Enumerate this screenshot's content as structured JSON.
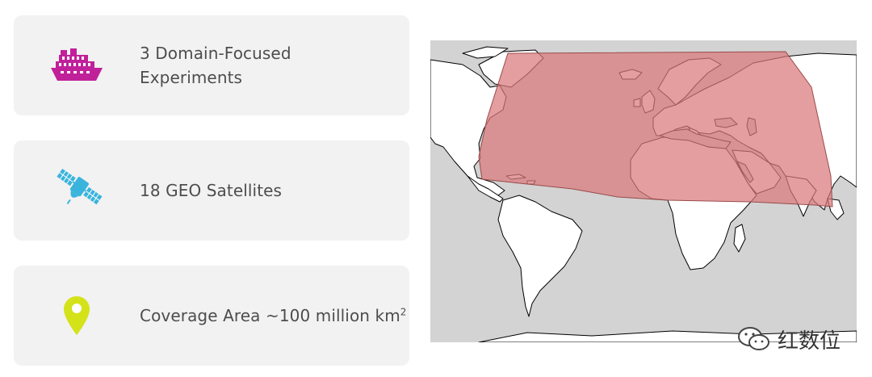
{
  "cards": [
    {
      "icon": "ship-icon",
      "line1": "3 Domain-Focused",
      "line2": "Experiments",
      "icon_color": "#c0209a"
    },
    {
      "icon": "satellite-icon",
      "text": "18 GEO Satellites",
      "icon_color": "#3ab4dc"
    },
    {
      "icon": "location-pin-icon",
      "text": "Coverage Area ~100 million km",
      "superscript": "2",
      "icon_color": "#d4e21a"
    }
  ],
  "map": {
    "ocean_color": "#d3d3d3",
    "land_color": "#ffffff",
    "coverage_color": "#d9787a",
    "coverage_region": "North Atlantic, Europe, Africa north of equator, Middle East, India"
  },
  "watermark": {
    "text": "红数位"
  }
}
